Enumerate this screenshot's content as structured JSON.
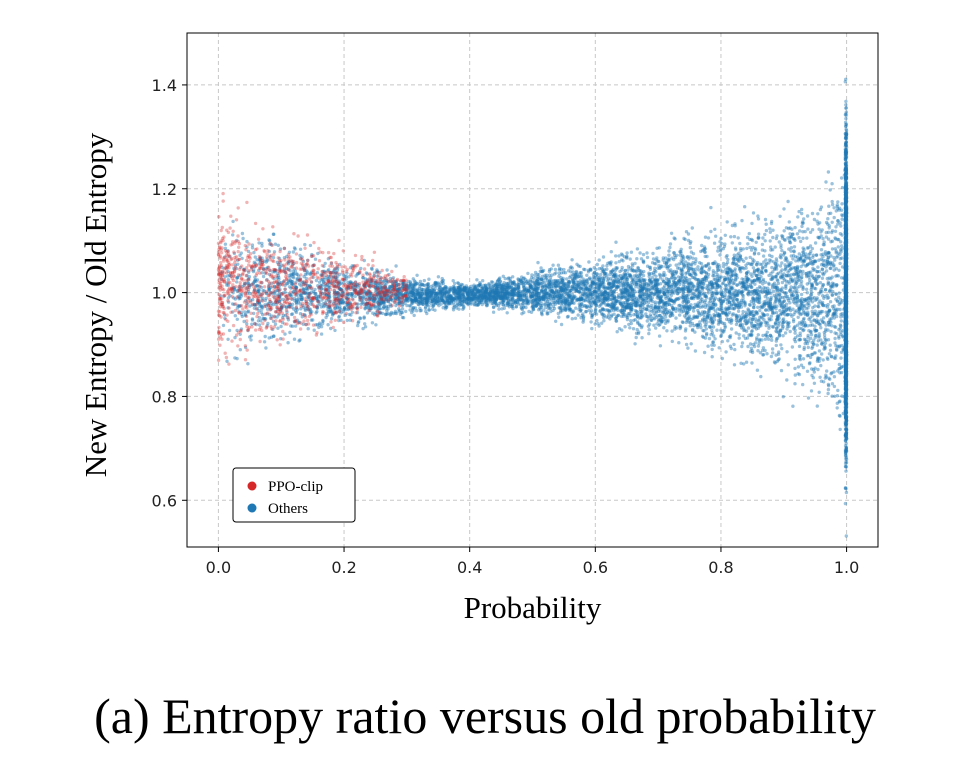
{
  "chart_data": {
    "type": "scatter",
    "title": "",
    "xlabel": "Probability",
    "ylabel": "New Entropy / Old Entropy",
    "xlim": [
      -0.05,
      1.05
    ],
    "ylim": [
      0.51,
      1.5
    ],
    "xticks": [
      0.0,
      0.2,
      0.4,
      0.6,
      0.8,
      1.0
    ],
    "xtick_labels": [
      "0.0",
      "0.2",
      "0.4",
      "0.6",
      "0.8",
      "1.0"
    ],
    "yticks": [
      0.6,
      0.8,
      1.0,
      1.2,
      1.4
    ],
    "ytick_labels": [
      "0.6",
      "0.8",
      "1.0",
      "1.2",
      "1.4"
    ],
    "grid": true,
    "legend_position": "bottom-left",
    "series": [
      {
        "name": "PPO-clip",
        "color": "#d62728",
        "x_range": [
          0.0,
          0.3
        ],
        "envelope": {
          "x": [
            0.0,
            0.1,
            0.2,
            0.3
          ],
          "upper": [
            1.24,
            1.17,
            1.12,
            1.05
          ],
          "lower": [
            0.8,
            0.86,
            0.9,
            0.96
          ]
        }
      },
      {
        "name": "Others",
        "color": "#1f77b4",
        "x_range": [
          0.0,
          1.0
        ],
        "envelope": {
          "x": [
            0.0,
            0.1,
            0.2,
            0.3,
            0.4,
            0.5,
            0.6,
            0.7,
            0.8,
            0.9,
            0.95,
            0.99,
            1.0
          ],
          "upper": [
            1.22,
            1.15,
            1.09,
            1.05,
            1.03,
            1.06,
            1.09,
            1.13,
            1.17,
            1.22,
            1.27,
            1.37,
            1.5
          ],
          "lower": [
            0.8,
            0.86,
            0.9,
            0.94,
            0.96,
            0.94,
            0.91,
            0.87,
            0.83,
            0.77,
            0.72,
            0.62,
            0.52
          ]
        }
      }
    ]
  },
  "caption": "(a) Entropy ratio versus old probability"
}
